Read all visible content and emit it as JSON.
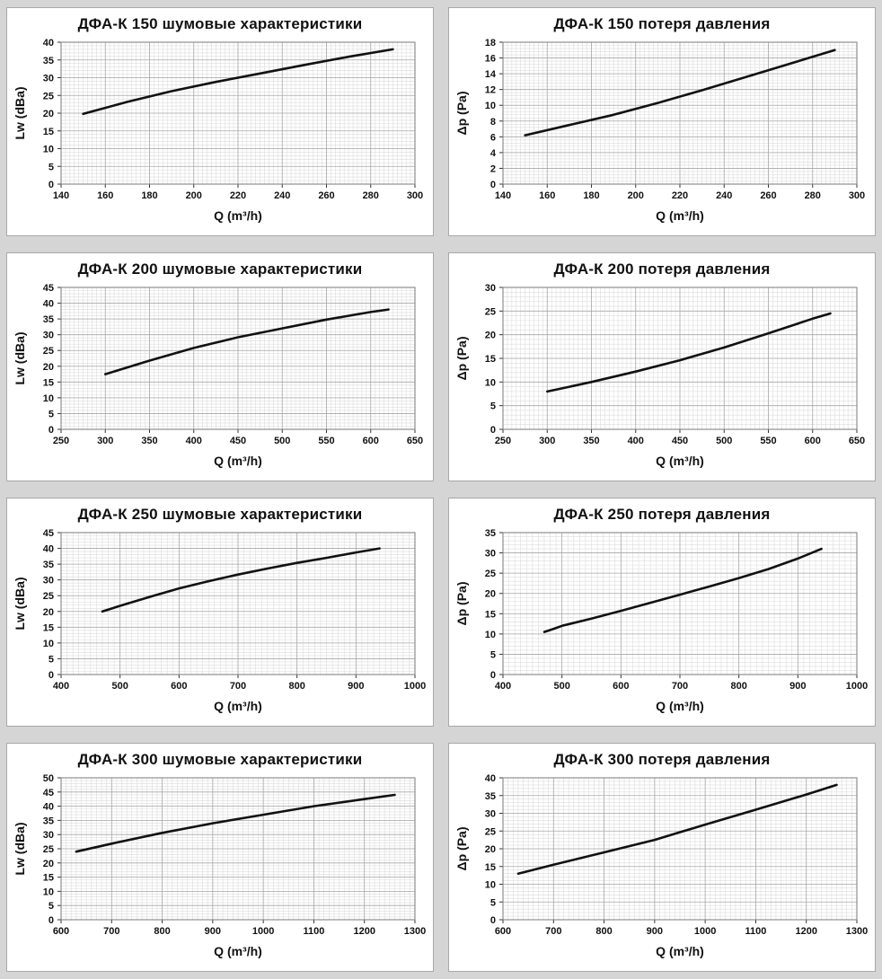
{
  "page": {
    "background_color": "#d5d5d5",
    "panel_background": "#ffffff",
    "panel_border_color": "#a8a8a8",
    "curve_color": "#111111",
    "minor_grid_color": "#dcdcdc",
    "major_grid_color": "#a9a9a9",
    "frame_color": "#7a7a7a"
  },
  "chart_data": [
    {
      "type": "line",
      "title": "ДФА-К 150 шумовые характеристики",
      "xlabel": "Q (m³/h)",
      "ylabel": "Lw (dBa)",
      "xlim": [
        140,
        300
      ],
      "xstep": 20,
      "ylim": [
        0,
        40
      ],
      "ystep": 5,
      "grid": true,
      "legend": "none",
      "points": [
        [
          150,
          19.8
        ],
        [
          170,
          23.2
        ],
        [
          190,
          26.2
        ],
        [
          210,
          28.8
        ],
        [
          230,
          31.2
        ],
        [
          250,
          33.6
        ],
        [
          270,
          35.9
        ],
        [
          290,
          38
        ]
      ]
    },
    {
      "type": "line",
      "title": "ДФА-К 150 потеря давления",
      "xlabel": "Q (m³/h)",
      "ylabel": "Δp (Pa)",
      "xlim": [
        140,
        300
      ],
      "xstep": 20,
      "ylim": [
        0,
        18
      ],
      "ystep": 2,
      "grid": true,
      "legend": "none",
      "points": [
        [
          150,
          6.2
        ],
        [
          170,
          7.5
        ],
        [
          190,
          8.8
        ],
        [
          210,
          10.3
        ],
        [
          230,
          11.9
        ],
        [
          250,
          13.6
        ],
        [
          270,
          15.3
        ],
        [
          290,
          17
        ]
      ]
    },
    {
      "type": "line",
      "title": "ДФА-К 200 шумовые характеристики",
      "xlabel": "Q (m³/h)",
      "ylabel": "Lw (dBa)",
      "xlim": [
        250,
        650
      ],
      "xstep": 50,
      "ylim": [
        0,
        45
      ],
      "ystep": 5,
      "grid": true,
      "legend": "none",
      "points": [
        [
          300,
          17.5
        ],
        [
          350,
          21.8
        ],
        [
          400,
          25.8
        ],
        [
          450,
          29.2
        ],
        [
          500,
          32
        ],
        [
          550,
          34.8
        ],
        [
          600,
          37.2
        ],
        [
          620,
          38
        ]
      ]
    },
    {
      "type": "line",
      "title": "ДФА-К 200 потеря давления",
      "xlabel": "Q (m³/h)",
      "ylabel": "Δp (Pa)",
      "xlim": [
        250,
        650
      ],
      "xstep": 50,
      "ylim": [
        0,
        30
      ],
      "ystep": 5,
      "grid": true,
      "legend": "none",
      "points": [
        [
          300,
          8
        ],
        [
          350,
          10
        ],
        [
          400,
          12.2
        ],
        [
          450,
          14.6
        ],
        [
          500,
          17.3
        ],
        [
          550,
          20.3
        ],
        [
          600,
          23.4
        ],
        [
          620,
          24.5
        ]
      ]
    },
    {
      "type": "line",
      "title": "ДФА-К 250 шумовые характеристики",
      "xlabel": "Q (m³/h)",
      "ylabel": "Lw (dBa)",
      "xlim": [
        400,
        1000
      ],
      "xstep": 100,
      "ylim": [
        0,
        45
      ],
      "ystep": 5,
      "grid": true,
      "legend": "none",
      "points": [
        [
          470,
          20
        ],
        [
          500,
          21.8
        ],
        [
          550,
          24.6
        ],
        [
          600,
          27.3
        ],
        [
          650,
          29.6
        ],
        [
          700,
          31.7
        ],
        [
          750,
          33.6
        ],
        [
          800,
          35.4
        ],
        [
          850,
          37
        ],
        [
          900,
          38.7
        ],
        [
          940,
          40
        ]
      ]
    },
    {
      "type": "line",
      "title": "ДФА-К 250 потеря давления",
      "xlabel": "Q (m³/h)",
      "ylabel": "Δp (Pa)",
      "xlim": [
        400,
        1000
      ],
      "xstep": 100,
      "ylim": [
        0,
        35
      ],
      "ystep": 5,
      "grid": true,
      "legend": "none",
      "points": [
        [
          470,
          10.5
        ],
        [
          485,
          11.2
        ],
        [
          500,
          12
        ],
        [
          550,
          13.8
        ],
        [
          600,
          15.7
        ],
        [
          650,
          17.7
        ],
        [
          700,
          19.7
        ],
        [
          750,
          21.7
        ],
        [
          800,
          23.8
        ],
        [
          850,
          26
        ],
        [
          900,
          28.6
        ],
        [
          940,
          31
        ]
      ]
    },
    {
      "type": "line",
      "title": "ДФА-К 300 шумовые характеристики",
      "xlabel": "Q (m³/h)",
      "ylabel": "Lw (dBa)",
      "xlim": [
        600,
        1300
      ],
      "xstep": 100,
      "ylim": [
        0,
        50
      ],
      "ystep": 5,
      "grid": true,
      "legend": "none",
      "points": [
        [
          630,
          24
        ],
        [
          700,
          26.8
        ],
        [
          800,
          30.6
        ],
        [
          900,
          34
        ],
        [
          1000,
          37
        ],
        [
          1100,
          40
        ],
        [
          1200,
          42.5
        ],
        [
          1260,
          44
        ]
      ]
    },
    {
      "type": "line",
      "title": "ДФА-К 300 потеря давления",
      "xlabel": "Q (m³/h)",
      "ylabel": "Δp (Pa)",
      "xlim": [
        600,
        1300
      ],
      "xstep": 100,
      "ylim": [
        0,
        40
      ],
      "ystep": 5,
      "grid": true,
      "legend": "none",
      "points": [
        [
          630,
          13
        ],
        [
          700,
          15.5
        ],
        [
          800,
          19
        ],
        [
          900,
          22.5
        ],
        [
          1000,
          26.8
        ],
        [
          1100,
          31
        ],
        [
          1200,
          35.3
        ],
        [
          1260,
          38
        ]
      ]
    }
  ]
}
